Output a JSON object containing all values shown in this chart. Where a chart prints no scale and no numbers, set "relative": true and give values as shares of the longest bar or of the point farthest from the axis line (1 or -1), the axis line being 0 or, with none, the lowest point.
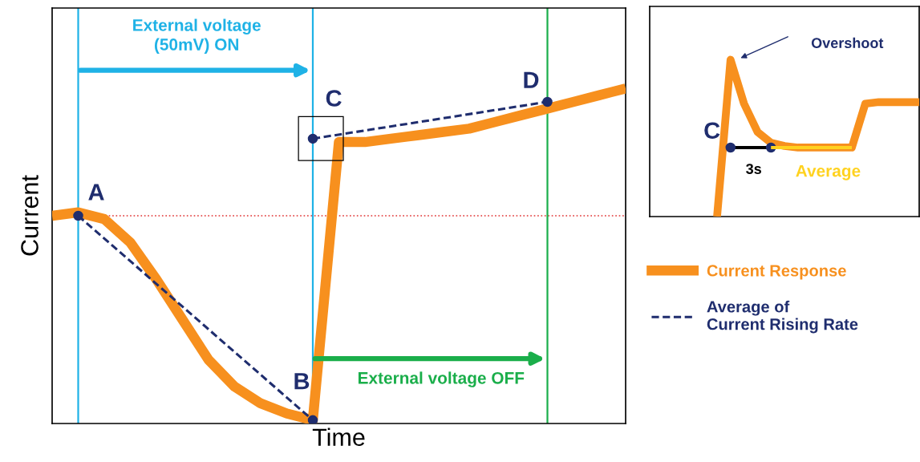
{
  "chart_data": [
    {
      "type": "line",
      "relative": true,
      "xlabel": "Time",
      "ylabel": "Current",
      "tick_labels": false,
      "legend": "right",
      "categories": [
        null,
        null,
        null,
        null,
        null,
        null,
        null,
        null,
        null,
        null,
        null,
        null,
        null,
        null,
        null,
        null,
        null,
        null,
        null,
        null,
        null,
        null,
        null
      ],
      "series": [
        {
          "name": "Current Response",
          "color": "#f7901e",
          "values": [
            0.62,
            0.63,
            0.61,
            0.54,
            0.43,
            0.31,
            0.19,
            0.11,
            0.06,
            0.03,
            0.01,
            0.84,
            0.84,
            0.85,
            0.86,
            0.87,
            0.88,
            0.9,
            0.92,
            0.94,
            0.96,
            0.98,
            1.0
          ]
        },
        {
          "name": "Average of\nCurrent Rising Rate",
          "color": "#1f2d6e",
          "line_style": "dashed",
          "marker": "circle",
          "values": [
            null,
            0.62,
            null,
            null,
            null,
            null,
            null,
            null,
            null,
            null,
            0.01,
            null,
            null,
            null,
            null,
            null,
            null,
            null,
            null,
            null,
            null,
            null,
            null
          ]
        },
        {
          "color": "#1f2d6e",
          "line_style": "dashed",
          "marker": "circle",
          "values": [
            null,
            null,
            null,
            null,
            null,
            null,
            null,
            null,
            null,
            null,
            0.85,
            null,
            null,
            null,
            null,
            null,
            null,
            null,
            null,
            0.96,
            null,
            null,
            null
          ]
        }
      ],
      "ref_lines": [
        {
          "axis": "y",
          "value": 0.62,
          "color": "#e03030",
          "line_style": "dotted"
        }
      ],
      "annotations": [
        "External voltage\n(50mV) ON",
        "External voltage OFF",
        "A",
        "B",
        "C",
        "D"
      ]
    },
    {
      "type": "line",
      "relative": true,
      "tick_labels": false,
      "categories": [
        null,
        null,
        null,
        null,
        null,
        null,
        null,
        null,
        null,
        null,
        null,
        null,
        null,
        null,
        null,
        null,
        null,
        null,
        null,
        null,
        null
      ],
      "series": [
        {
          "color": "#f7901e",
          "values": [
            null,
            null,
            null,
            null,
            null,
            0,
            1.0,
            0.72,
            0.54,
            0.47,
            0.45,
            0.44,
            0.44,
            0.44,
            0.44,
            0.44,
            0.72,
            0.73,
            0.73,
            0.73,
            0.73
          ]
        },
        {
          "color": "#000000",
          "marker": "circle",
          "values": [
            null,
            null,
            null,
            null,
            null,
            null,
            0.44,
            null,
            null,
            0.44,
            null,
            null,
            null,
            null,
            null,
            null,
            null,
            null,
            null,
            null,
            null
          ]
        },
        {
          "name": "Average",
          "color": "#ffd21f",
          "values": [
            null,
            null,
            null,
            null,
            null,
            null,
            null,
            null,
            null,
            0.44,
            null,
            null,
            null,
            null,
            null,
            0.44,
            null,
            null,
            null,
            null,
            null
          ]
        }
      ],
      "annotations": [
        "Overshoot",
        "C",
        "3s"
      ]
    }
  ]
}
